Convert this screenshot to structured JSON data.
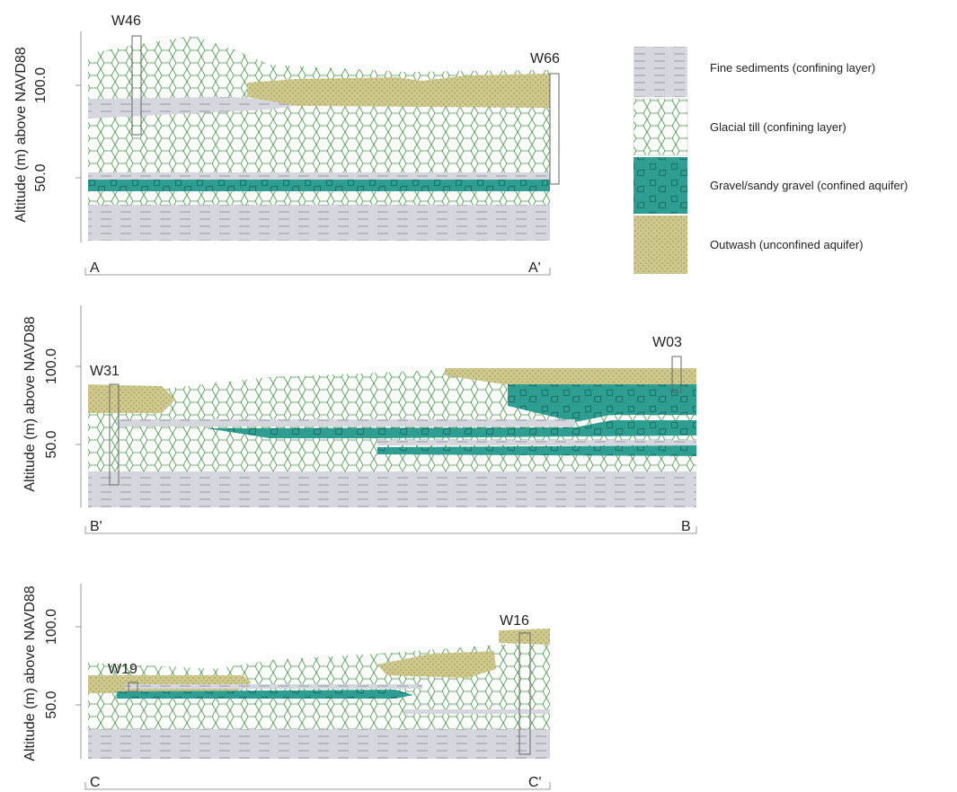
{
  "sections": [
    {
      "y_axis_label": "Altitude (m) above NAVD88",
      "y_ticks": [
        "100.0",
        "50.0"
      ],
      "left_label": "A",
      "right_label": "A'",
      "wells": [
        "W46",
        "W66"
      ]
    },
    {
      "y_axis_label": "Altitude (m) above NAVD88",
      "y_ticks": [
        "100.0",
        "50.0"
      ],
      "left_label": "B'",
      "right_label": "B",
      "wells": [
        "W31",
        "W03"
      ]
    },
    {
      "y_axis_label": "Altitude (m) above NAVD88",
      "y_ticks": [
        "100.0",
        "50.0"
      ],
      "left_label": "C",
      "right_label": "C'",
      "wells": [
        "W19",
        "W16"
      ]
    }
  ],
  "legend": [
    "Fine sediments (confining layer)",
    "Glacial till (confining layer)",
    "Gravel/sandy gravel (confined aquifer)",
    "Outwash (unconfined aquifer)"
  ]
}
